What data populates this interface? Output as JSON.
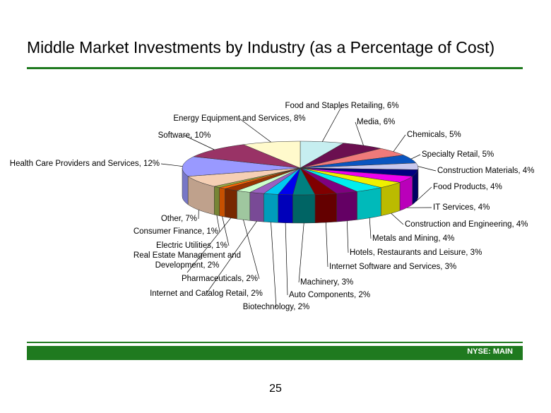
{
  "slide": {
    "title": "Middle Market Investments by Industry (as a Percentage of Cost)",
    "ticker": "NYSE: MAIN",
    "page_number": "25"
  },
  "chart_data": {
    "type": "pie",
    "style": "3d-exploded-labels",
    "title": "",
    "slices": [
      {
        "label": "Food and Staples Retailing, 6%",
        "category": "Food and Staples Retailing",
        "value": 6,
        "color": "#c6eef0"
      },
      {
        "label": "Media, 6%",
        "category": "Media",
        "value": 6,
        "color": "#6b0f50"
      },
      {
        "label": "Chemicals, 5%",
        "category": "Chemicals",
        "value": 5,
        "color": "#ee7a7a"
      },
      {
        "label": "Specialty Retail, 5%",
        "category": "Specialty Retail",
        "value": 5,
        "color": "#0a55c0"
      },
      {
        "label": "Construction Materials, 4%",
        "category": "Construction Materials",
        "value": 4,
        "color": "#c8c8ee"
      },
      {
        "label": "Food Products, 4%",
        "category": "Food Products",
        "value": 4,
        "color": "#000080"
      },
      {
        "label": "IT Services, 4%",
        "category": "IT Services",
        "value": 4,
        "color": "#ee00ee"
      },
      {
        "label": "Construction and Engineering, 4%",
        "category": "Construction and Engineering",
        "value": 4,
        "color": "#f0f000"
      },
      {
        "label": "Metals and Mining, 4%",
        "category": "Metals and Mining",
        "value": 4,
        "color": "#00eeee"
      },
      {
        "label": "Hotels, Restaurants and Leisure, 3%",
        "category": "Hotels, Restaurants and Leisure",
        "value": 3,
        "color": "#800080"
      },
      {
        "label": "Internet Software and Services, 3%",
        "category": "Internet Software and Services",
        "value": 3,
        "color": "#800000"
      },
      {
        "label": "Machinery, 3%",
        "category": "Machinery",
        "value": 3,
        "color": "#008080"
      },
      {
        "label": "Auto Components, 2%",
        "category": "Auto Components",
        "value": 2,
        "color": "#0000ee"
      },
      {
        "label": "Biotechnology, 2%",
        "category": "Biotechnology",
        "value": 2,
        "color": "#00c8f0"
      },
      {
        "label": "Internet and Catalog Retail, 2%",
        "category": "Internet and Catalog Retail",
        "value": 2,
        "color": "#9b5fc0"
      },
      {
        "label": "Pharmaceuticals, 2%",
        "category": "Pharmaceuticals",
        "value": 2,
        "color": "#ccffcc"
      },
      {
        "label": "Real Estate Management and Development, 2%",
        "category": "Real Estate Management and Development",
        "value": 2,
        "color": "#993300"
      },
      {
        "label": "Electric Utilities, 1%",
        "category": "Electric Utilities",
        "value": 1,
        "color": "#ff6600"
      },
      {
        "label": "Consumer Finance, 1%",
        "category": "Consumer Finance",
        "value": 1,
        "color": "#99aa44"
      },
      {
        "label": "Other, 7%",
        "category": "Other",
        "value": 7,
        "color": "#f5cfb4"
      },
      {
        "label": "Health Care Providers and Services, 12%",
        "category": "Health Care Providers and Services",
        "value": 12,
        "color": "#9999ff"
      },
      {
        "label": "Software, 10%",
        "category": "Software",
        "value": 10,
        "color": "#993366"
      },
      {
        "label": "Energy Equipment and Services, 8%",
        "category": "Energy Equipment and Services",
        "value": 8,
        "color": "#fffacc"
      }
    ]
  }
}
